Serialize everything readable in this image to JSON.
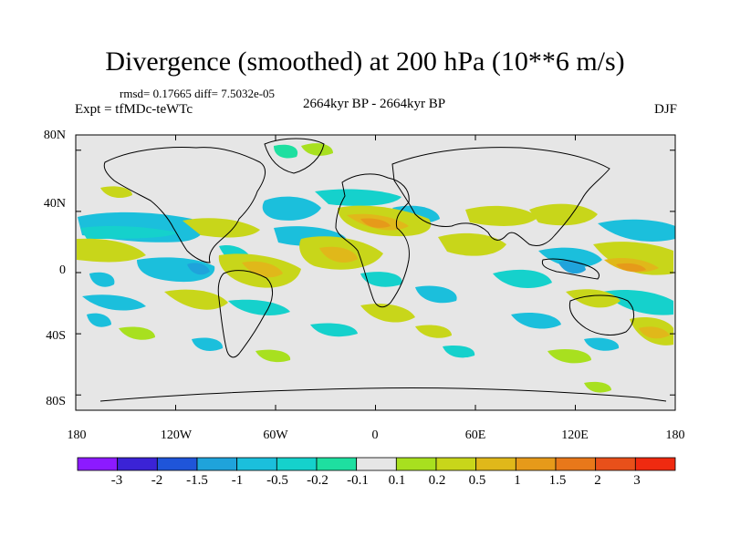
{
  "figure": {
    "title": "Divergence (smoothed) at 200 hPa (10**6 m/s)",
    "stats": "rmsd= 0.17665 diff= 7.5032e-05",
    "experiment": "Expt = tfMDc-teWTc",
    "period": "2664kyr BP - 2664kyr BP",
    "season": "DJF"
  },
  "axes": {
    "lat_labels": [
      "80N",
      "40N",
      "0",
      "40S",
      "80S"
    ],
    "lat_values": [
      80,
      40,
      0,
      -40,
      -80
    ],
    "lon_labels": [
      "180",
      "120W",
      "60W",
      "0",
      "60E",
      "120E",
      "180"
    ],
    "lon_values": [
      -180,
      -120,
      -60,
      0,
      60,
      120,
      180
    ]
  },
  "colorbar": {
    "levels": [
      "-3",
      "-2",
      "-1.5",
      "-1",
      "-0.5",
      "-0.2",
      "-0.1",
      "0.1",
      "0.2",
      "0.5",
      "1",
      "1.5",
      "2",
      "3"
    ],
    "colors": [
      "#8c1aff",
      "#3b23d6",
      "#1f55d9",
      "#1fa3db",
      "#1bbfdc",
      "#15d1cc",
      "#1edfa0",
      "#e6e6e6",
      "#a8e01f",
      "#c8d61a",
      "#e0b81a",
      "#e69a1a",
      "#e8781a",
      "#e8501a",
      "#ef2a10"
    ]
  },
  "map_colors": {
    "background": "#e6e6e6",
    "coast": "#000000"
  }
}
